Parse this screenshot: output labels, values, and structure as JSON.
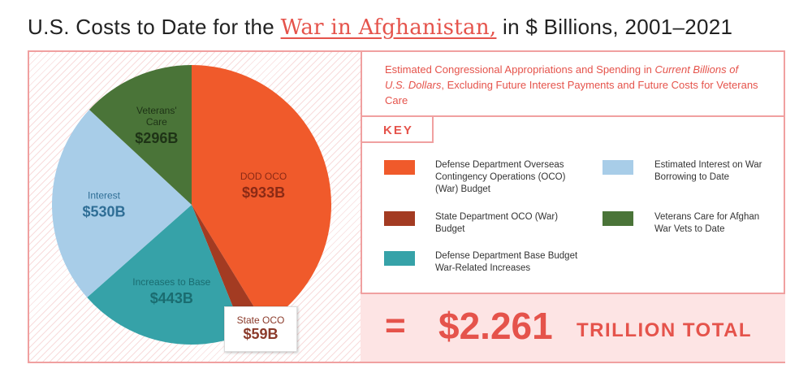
{
  "title": {
    "prefix": "U.S. Costs to Date for the",
    "highlight": "War in Afghanistan,",
    "suffix": "in $ Billions, 2001–2021"
  },
  "description": {
    "part1": "Estimated Congressional Appropriations and Spending in",
    "italic": "Current Billions of U.S. Dollars",
    "part2": ", Excluding Future Interest Payments and Future Costs for Veterans Care"
  },
  "key_label": "KEY",
  "legend": [
    {
      "label": "Defense Department Overseas Contingency Operations (OCO) (War) Budget",
      "color": "#f05a2b"
    },
    {
      "label": "State Department OCO (War) Budget",
      "color": "#a33b22"
    },
    {
      "label": "Defense Department Base Budget War-Related Increases",
      "color": "#36a2a8"
    },
    {
      "label": "Estimated Interest on War Borrowing to Date",
      "color": "#a8cde8"
    },
    {
      "label": "Veterans Care for Afghan War Vets to Date",
      "color": "#4a7438"
    }
  ],
  "total": {
    "eq": "=",
    "amount": "$2.261",
    "text": "TRILLION TOTAL"
  },
  "chart_data": {
    "type": "pie",
    "title": "U.S. Costs to Date for the War in Afghanistan, in $ Billions, 2001–2021",
    "unit": "$ Billions",
    "slices": [
      {
        "name": "DOD OCO",
        "value": 933,
        "display": "$933B",
        "color": "#f05a2b",
        "label_color": "#8b2a15"
      },
      {
        "name": "State OCO",
        "value": 59,
        "display": "$59B",
        "color": "#a33b22",
        "label_color": "#8b3a2a"
      },
      {
        "name": "Increases to Base",
        "value": 443,
        "display": "$443B",
        "color": "#36a2a8",
        "label_color": "#1a6c70"
      },
      {
        "name": "Interest",
        "value": 530,
        "display": "$530B",
        "color": "#a8cde8",
        "label_color": "#2f6e96"
      },
      {
        "name": "Veterans' Care",
        "value": 296,
        "display": "$296B",
        "color": "#4a7438",
        "label_color": "#1e3316"
      }
    ],
    "total_display": "$2.261 TRILLION TOTAL"
  }
}
